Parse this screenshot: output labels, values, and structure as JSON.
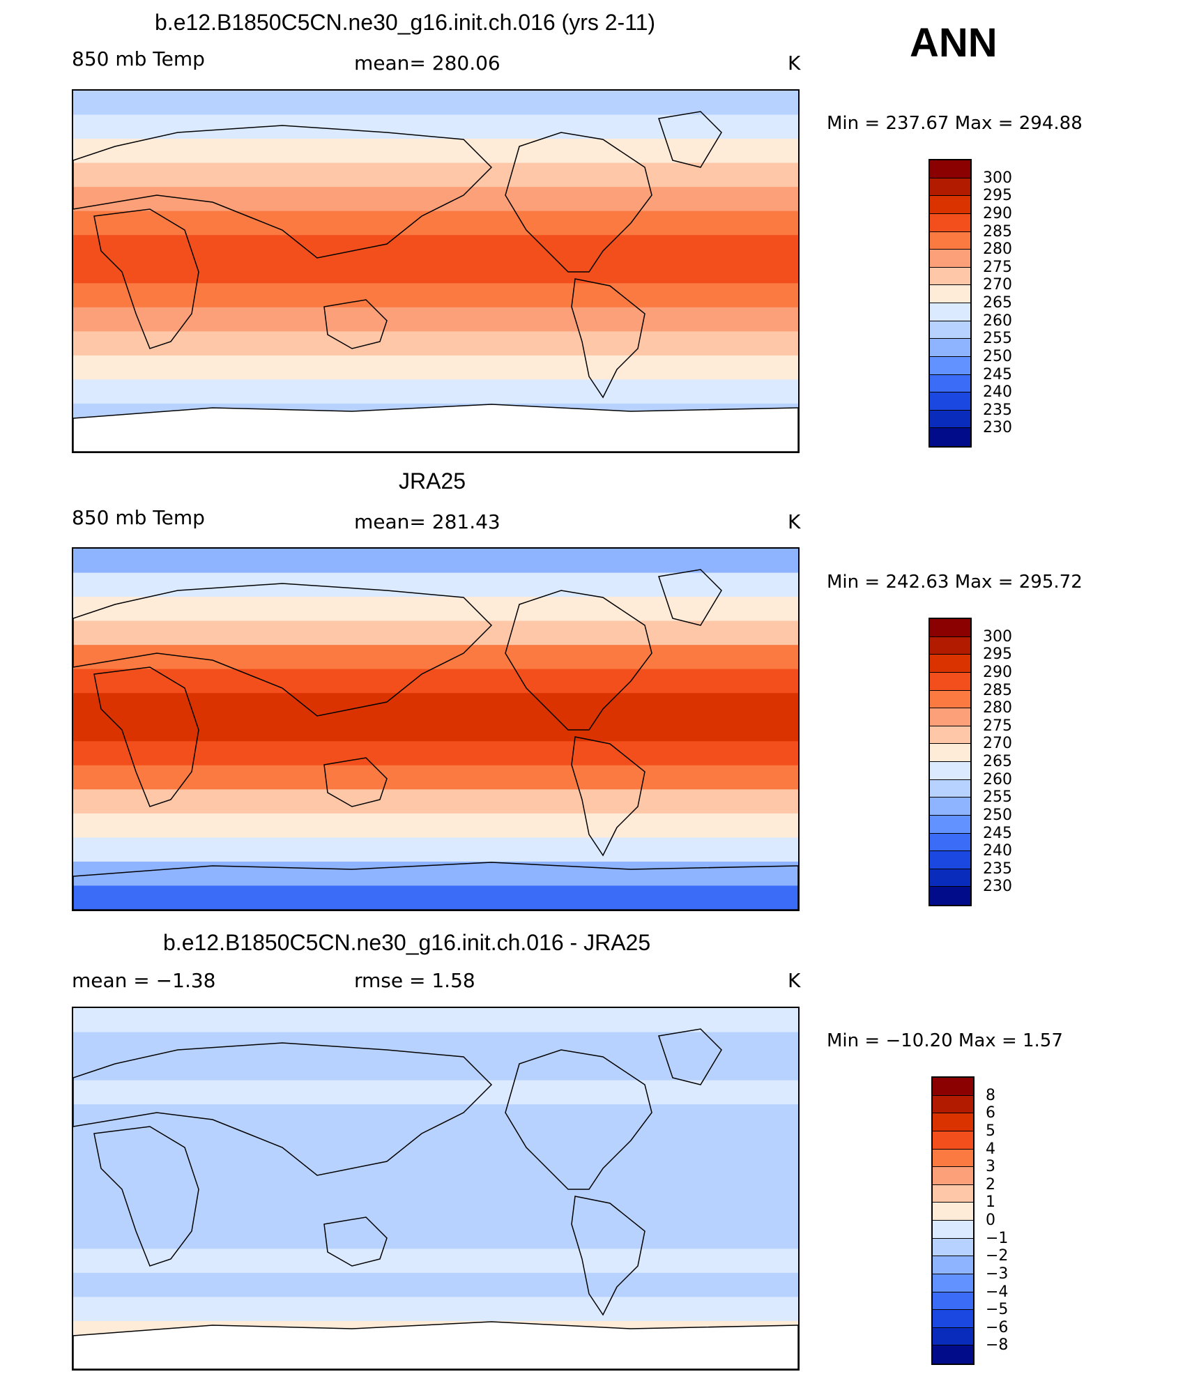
{
  "season": "ANN",
  "panels": [
    {
      "title": "b.e12.B1850C5CN.ne30_g16.init.ch.016 (yrs 2-11)",
      "left_label": "850 mb Temp",
      "center_label": "mean=  280.06",
      "units": "K",
      "minmax": "Min  =  237.67  Max  =  294.88",
      "palette": "temp"
    },
    {
      "title": "JRA25",
      "left_label": "850 mb Temp",
      "center_label": "mean=  281.43",
      "units": "K",
      "minmax": "Min  =  242.63  Max  =  295.72",
      "palette": "temp"
    },
    {
      "title": "b.e12.B1850C5CN.ne30_g16.init.ch.016 - JRA25",
      "left_label": "mean  =    −1.38",
      "center_label": "rmse  =     1.58",
      "units": "K",
      "minmax": "Min  =  −10.20  Max  =     1.57",
      "palette": "diff"
    }
  ],
  "colorbars": {
    "temp": {
      "labels": [
        "300",
        "295",
        "290",
        "285",
        "280",
        "275",
        "270",
        "265",
        "260",
        "255",
        "250",
        "245",
        "240",
        "235",
        "230"
      ],
      "colors": [
        "#8b0000",
        "#b31b00",
        "#da3300",
        "#f24f1c",
        "#fa7a42",
        "#fca079",
        "#fec7a8",
        "#feebd8",
        "#dbeaff",
        "#b8d2ff",
        "#8eb3ff",
        "#6192ff",
        "#3a6cf7",
        "#1a48e0",
        "#0a2cbd",
        "#000c8a"
      ]
    },
    "diff": {
      "labels": [
        "8",
        "6",
        "5",
        "4",
        "3",
        "2",
        "1",
        "0",
        "−1",
        "−2",
        "−3",
        "−4",
        "−5",
        "−6",
        "−8"
      ],
      "colors": [
        "#8b0000",
        "#b31b00",
        "#da3300",
        "#f24f1c",
        "#fa7a42",
        "#fca079",
        "#fec7a8",
        "#feebd8",
        "#dbeaff",
        "#b8d2ff",
        "#8eb3ff",
        "#6192ff",
        "#3a6cf7",
        "#1a48e0",
        "#0a2cbd",
        "#000c8a"
      ]
    }
  },
  "map_fill": {
    "temp_model": [
      "#b8d2ff",
      "#dbeaff",
      "#feebd8",
      "#fec7a8",
      "#fca079",
      "#fa7a42",
      "#f24f1c",
      "#f24f1c",
      "#fa7a42",
      "#fca079",
      "#fec7a8",
      "#feebd8",
      "#dbeaff",
      "#b8d2ff",
      "#8eb3ff"
    ],
    "temp_obs": [
      "#8eb3ff",
      "#dbeaff",
      "#feebd8",
      "#fec7a8",
      "#fa7a42",
      "#f24f1c",
      "#da3300",
      "#da3300",
      "#f24f1c",
      "#fa7a42",
      "#fec7a8",
      "#feebd8",
      "#dbeaff",
      "#8eb3ff",
      "#3a6cf7"
    ],
    "diff": [
      "#dbeaff",
      "#b8d2ff",
      "#b8d2ff",
      "#dbeaff",
      "#b8d2ff",
      "#b8d2ff",
      "#b8d2ff",
      "#b8d2ff",
      "#b8d2ff",
      "#b8d2ff",
      "#dbeaff",
      "#b8d2ff",
      "#dbeaff",
      "#feebd8",
      "#dbeaff"
    ]
  }
}
